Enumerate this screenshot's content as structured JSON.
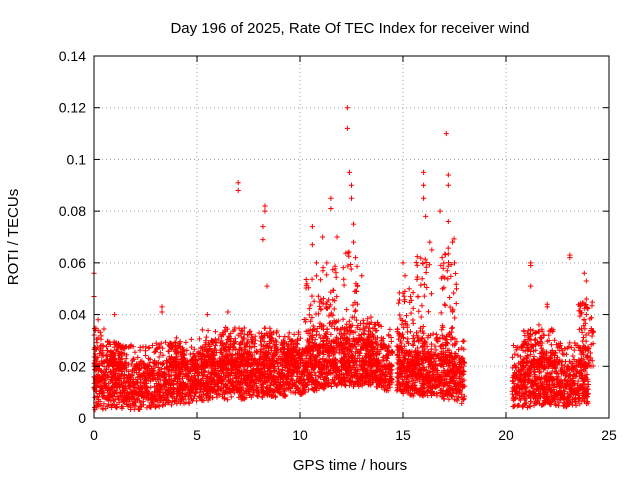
{
  "chart_data": {
    "type": "scatter",
    "title": "Day 196 of 2025, Rate Of TEC Index for receiver wind",
    "xlabel": "GPS time / hours",
    "ylabel": "ROTI / TECUs",
    "xlim": [
      0,
      25
    ],
    "ylim": [
      0,
      0.14
    ],
    "x_ticks": [
      0,
      5,
      10,
      15,
      20,
      25
    ],
    "y_ticks": [
      0,
      0.02,
      0.04,
      0.06,
      0.08,
      0.1,
      0.12,
      0.14
    ],
    "x_tick_labels": [
      "0",
      "5",
      "10",
      "15",
      "20",
      "25"
    ],
    "y_tick_labels": [
      "0",
      "0.02",
      "0.04",
      "0.06",
      "0.08",
      "0.1",
      "0.12",
      "0.14"
    ],
    "grid": true,
    "marker": "plus",
    "series_color": "#ff0000",
    "data_gaps_hours": [
      [
        14.5,
        14.7
      ],
      [
        18.0,
        20.3
      ]
    ],
    "baseline_by_hour": [
      [
        0,
        0.012
      ],
      [
        1,
        0.013
      ],
      [
        2,
        0.012
      ],
      [
        3,
        0.013
      ],
      [
        4,
        0.014
      ],
      [
        5,
        0.015
      ],
      [
        6,
        0.016
      ],
      [
        7,
        0.016
      ],
      [
        8,
        0.017
      ],
      [
        9,
        0.017
      ],
      [
        10,
        0.018
      ],
      [
        11,
        0.02
      ],
      [
        12,
        0.022
      ],
      [
        13,
        0.022
      ],
      [
        14,
        0.02
      ],
      [
        15,
        0.018
      ],
      [
        16,
        0.017
      ],
      [
        17,
        0.016
      ],
      [
        18,
        0.014
      ],
      [
        20.3,
        0.013
      ],
      [
        21,
        0.013
      ],
      [
        22,
        0.014
      ],
      [
        23,
        0.013
      ],
      [
        24,
        0.014
      ]
    ],
    "notable_points": [
      {
        "x": 0.0,
        "y": 0.056
      },
      {
        "x": 0.0,
        "y": 0.047
      },
      {
        "x": 0.2,
        "y": 0.038
      },
      {
        "x": 1.0,
        "y": 0.04
      },
      {
        "x": 3.3,
        "y": 0.043
      },
      {
        "x": 3.3,
        "y": 0.041
      },
      {
        "x": 4.0,
        "y": 0.031
      },
      {
        "x": 5.5,
        "y": 0.04
      },
      {
        "x": 6.5,
        "y": 0.041
      },
      {
        "x": 7.0,
        "y": 0.091
      },
      {
        "x": 7.0,
        "y": 0.088
      },
      {
        "x": 8.3,
        "y": 0.082
      },
      {
        "x": 8.3,
        "y": 0.08
      },
      {
        "x": 8.2,
        "y": 0.074
      },
      {
        "x": 8.2,
        "y": 0.069
      },
      {
        "x": 8.4,
        "y": 0.051
      },
      {
        "x": 10.6,
        "y": 0.074
      },
      {
        "x": 10.6,
        "y": 0.067
      },
      {
        "x": 10.8,
        "y": 0.06
      },
      {
        "x": 11.1,
        "y": 0.07
      },
      {
        "x": 11.3,
        "y": 0.06
      },
      {
        "x": 11.5,
        "y": 0.085
      },
      {
        "x": 11.5,
        "y": 0.081
      },
      {
        "x": 11.8,
        "y": 0.07
      },
      {
        "x": 12.3,
        "y": 0.12
      },
      {
        "x": 12.3,
        "y": 0.112
      },
      {
        "x": 12.4,
        "y": 0.095
      },
      {
        "x": 12.5,
        "y": 0.09
      },
      {
        "x": 12.5,
        "y": 0.085
      },
      {
        "x": 12.6,
        "y": 0.075
      },
      {
        "x": 12.6,
        "y": 0.068
      },
      {
        "x": 12.7,
        "y": 0.062
      },
      {
        "x": 13.0,
        "y": 0.055
      },
      {
        "x": 15.0,
        "y": 0.06
      },
      {
        "x": 15.1,
        "y": 0.055
      },
      {
        "x": 15.3,
        "y": 0.05
      },
      {
        "x": 16.0,
        "y": 0.095
      },
      {
        "x": 16.0,
        "y": 0.09
      },
      {
        "x": 16.0,
        "y": 0.085
      },
      {
        "x": 16.1,
        "y": 0.078
      },
      {
        "x": 16.3,
        "y": 0.068
      },
      {
        "x": 16.4,
        "y": 0.065
      },
      {
        "x": 16.8,
        "y": 0.08
      },
      {
        "x": 16.9,
        "y": 0.062
      },
      {
        "x": 17.1,
        "y": 0.11
      },
      {
        "x": 17.2,
        "y": 0.094
      },
      {
        "x": 17.2,
        "y": 0.09
      },
      {
        "x": 17.2,
        "y": 0.076
      },
      {
        "x": 17.4,
        "y": 0.068
      },
      {
        "x": 17.5,
        "y": 0.06
      },
      {
        "x": 17.6,
        "y": 0.05
      },
      {
        "x": 21.2,
        "y": 0.06
      },
      {
        "x": 21.2,
        "y": 0.059
      },
      {
        "x": 21.2,
        "y": 0.051
      },
      {
        "x": 21.6,
        "y": 0.036
      },
      {
        "x": 22.0,
        "y": 0.044
      },
      {
        "x": 22.0,
        "y": 0.043
      },
      {
        "x": 23.1,
        "y": 0.063
      },
      {
        "x": 23.1,
        "y": 0.062
      },
      {
        "x": 23.4,
        "y": 0.028
      },
      {
        "x": 23.8,
        "y": 0.056
      },
      {
        "x": 23.9,
        "y": 0.053
      },
      {
        "x": 23.9,
        "y": 0.046
      },
      {
        "x": 23.9,
        "y": 0.04
      }
    ],
    "bursts": [
      {
        "center": 0.1,
        "peak": 0.035
      },
      {
        "center": 1.0,
        "peak": 0.03
      },
      {
        "center": 4.0,
        "peak": 0.03
      },
      {
        "center": 5.5,
        "peak": 0.035
      },
      {
        "center": 6.5,
        "peak": 0.035
      },
      {
        "center": 7.3,
        "peak": 0.035
      },
      {
        "center": 8.5,
        "peak": 0.035
      },
      {
        "center": 9.5,
        "peak": 0.03
      },
      {
        "center": 10.6,
        "peak": 0.055
      },
      {
        "center": 11.4,
        "peak": 0.06
      },
      {
        "center": 12.4,
        "peak": 0.065
      },
      {
        "center": 13.4,
        "peak": 0.04
      },
      {
        "center": 15.1,
        "peak": 0.05
      },
      {
        "center": 16.0,
        "peak": 0.065
      },
      {
        "center": 17.2,
        "peak": 0.07
      },
      {
        "center": 21.2,
        "peak": 0.035
      },
      {
        "center": 22.0,
        "peak": 0.035
      },
      {
        "center": 23.9,
        "peak": 0.045
      }
    ]
  }
}
